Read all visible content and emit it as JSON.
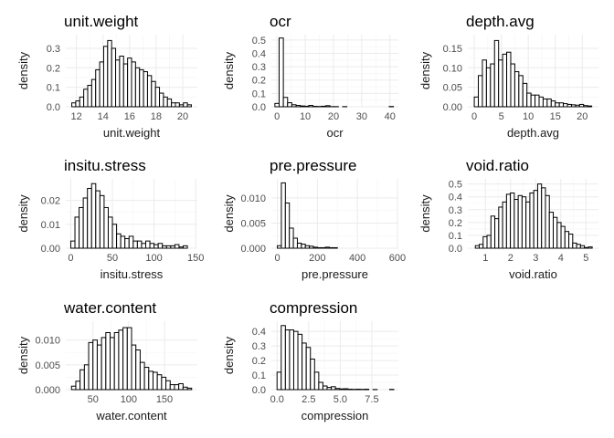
{
  "chart_data": [
    {
      "type": "bar",
      "title": "unit.weight",
      "xlabel": "unit.weight",
      "ylabel": "density",
      "xlim": [
        11.2,
        21.1
      ],
      "ylim": [
        0,
        0.37
      ],
      "xticks": [
        12,
        14,
        16,
        18,
        20
      ],
      "xtick_labels": [
        "12",
        "14",
        "16",
        "18",
        "20"
      ],
      "yticks": [
        0,
        0.1,
        0.2,
        0.3
      ],
      "ytick_labels": [
        "0.0",
        "0.1",
        "0.2",
        "0.3"
      ],
      "bin_start": 11.65,
      "bin_width": 0.3,
      "values": [
        0.02,
        0.03,
        0.05,
        0.09,
        0.11,
        0.14,
        0.19,
        0.23,
        0.31,
        0.34,
        0.3,
        0.24,
        0.26,
        0.22,
        0.25,
        0.23,
        0.2,
        0.19,
        0.18,
        0.16,
        0.13,
        0.1,
        0.07,
        0.05,
        0.04,
        0.02,
        0.02,
        0.01,
        0.02,
        0.01
      ]
    },
    {
      "type": "bar",
      "title": "ocr",
      "xlabel": "ocr",
      "ylabel": "density",
      "xlim": [
        -2,
        43
      ],
      "ylim": [
        0,
        0.54
      ],
      "xticks": [
        0,
        10,
        20,
        30,
        40
      ],
      "xtick_labels": [
        "0",
        "10",
        "20",
        "30",
        "40"
      ],
      "yticks": [
        0,
        0.1,
        0.2,
        0.3,
        0.4,
        0.5
      ],
      "ytick_labels": [
        "0.0",
        "0.1",
        "0.2",
        "0.3",
        "0.4",
        "0.5"
      ],
      "bin_start": -0.75,
      "bin_width": 1.5,
      "values": [
        0.025,
        0.515,
        0.07,
        0.03,
        0.015,
        0.01,
        0.006,
        0.004,
        0.01,
        0.003,
        0.002,
        0.004,
        0.008,
        0.001,
        0.001,
        0.0,
        0.001,
        0.0,
        0.0,
        0.0,
        0.0,
        0.0,
        0.0,
        0.0,
        0.0,
        0.0,
        0.0,
        0.002,
        0.0
      ]
    },
    {
      "type": "bar",
      "title": "depth.avg",
      "xlabel": "depth.avg",
      "ylabel": "density",
      "xlim": [
        -1.2,
        23
      ],
      "ylim": [
        0,
        0.185
      ],
      "xticks": [
        0,
        5,
        10,
        15,
        20
      ],
      "xtick_labels": [
        "0",
        "5",
        "10",
        "15",
        "20"
      ],
      "yticks": [
        0,
        0.05,
        0.1,
        0.15
      ],
      "ytick_labels": [
        "0.00",
        "0.05",
        "0.10",
        "0.15"
      ],
      "bin_start": 0,
      "bin_width": 0.75,
      "values": [
        0.025,
        0.08,
        0.12,
        0.1,
        0.11,
        0.17,
        0.12,
        0.135,
        0.14,
        0.11,
        0.09,
        0.08,
        0.06,
        0.035,
        0.03,
        0.03,
        0.025,
        0.02,
        0.02,
        0.015,
        0.01,
        0.01,
        0.008,
        0.006,
        0.005,
        0.004,
        0.006,
        0.003,
        0.002
      ]
    },
    {
      "type": "bar",
      "title": "insitu.stress",
      "xlabel": "insitu.stress",
      "ylabel": "density",
      "xlim": [
        -6,
        152
      ],
      "ylim": [
        0,
        0.029
      ],
      "xticks": [
        0,
        50,
        100,
        150
      ],
      "xtick_labels": [
        "0",
        "50",
        "100",
        "150"
      ],
      "yticks": [
        0,
        0.01,
        0.02
      ],
      "ytick_labels": [
        "0.00",
        "0.01",
        "0.02"
      ],
      "bin_start": 0,
      "bin_width": 5,
      "values": [
        0.003,
        0.013,
        0.017,
        0.021,
        0.025,
        0.027,
        0.024,
        0.022,
        0.017,
        0.013,
        0.01,
        0.006,
        0.005,
        0.004,
        0.005,
        0.003,
        0.003,
        0.002,
        0.003,
        0.002,
        0.0015,
        0.002,
        0.001,
        0.001,
        0.001,
        0.0015,
        0.0005,
        0.001
      ]
    },
    {
      "type": "bar",
      "title": "pre.pressure",
      "xlabel": "pre.pressure",
      "ylabel": "density",
      "xlim": [
        -30,
        605
      ],
      "ylim": [
        0,
        0.0138
      ],
      "xticks": [
        0,
        200,
        400,
        600
      ],
      "xtick_labels": [
        "0",
        "200",
        "400",
        "600"
      ],
      "yticks": [
        0,
        0.005,
        0.01
      ],
      "ytick_labels": [
        "0.000",
        "0.005",
        "0.010"
      ],
      "bin_start": 0,
      "bin_width": 20,
      "values": [
        0.0005,
        0.013,
        0.009,
        0.004,
        0.002,
        0.001,
        0.0008,
        0.0005,
        0.0004,
        0.0002,
        0.0001,
        0.0001,
        0.0002,
        0.0001,
        0.0001,
        0.0,
        0.0,
        0.0,
        0.0,
        0.0,
        0.0,
        0.0,
        0.0,
        0.0,
        0.0,
        0.0,
        0.0,
        0.0,
        0.0,
        0.0
      ]
    },
    {
      "type": "bar",
      "title": "void.ratio",
      "xlabel": "void.ratio",
      "ylabel": "density",
      "xlim": [
        0.3,
        5.5
      ],
      "ylim": [
        0,
        0.54
      ],
      "xticks": [
        1,
        2,
        3,
        4,
        5
      ],
      "xtick_labels": [
        "1",
        "2",
        "3",
        "4",
        "5"
      ],
      "yticks": [
        0,
        0.1,
        0.2,
        0.3,
        0.4,
        0.5
      ],
      "ytick_labels": [
        "0.0",
        "0.1",
        "0.2",
        "0.3",
        "0.4",
        "0.5"
      ],
      "bin_start": 0.6,
      "bin_width": 0.155,
      "values": [
        0.02,
        0.03,
        0.09,
        0.1,
        0.25,
        0.23,
        0.32,
        0.36,
        0.42,
        0.43,
        0.38,
        0.41,
        0.4,
        0.36,
        0.43,
        0.45,
        0.5,
        0.47,
        0.41,
        0.28,
        0.24,
        0.2,
        0.17,
        0.13,
        0.11,
        0.04,
        0.03,
        0.02,
        0.005,
        0.01
      ]
    },
    {
      "type": "bar",
      "title": "water.content",
      "xlabel": "water.content",
      "ylabel": "density",
      "xlim": [
        12,
        196
      ],
      "ylim": [
        0,
        0.0138
      ],
      "xticks": [
        50,
        100,
        150
      ],
      "xtick_labels": [
        "50",
        "100",
        "150"
      ],
      "yticks": [
        0,
        0.005,
        0.01
      ],
      "ytick_labels": [
        "0.000",
        "0.005",
        "0.010"
      ],
      "bin_start": 20,
      "bin_width": 6,
      "values": [
        0.0007,
        0.0017,
        0.004,
        0.005,
        0.0095,
        0.01,
        0.009,
        0.0105,
        0.0115,
        0.0105,
        0.0115,
        0.012,
        0.0125,
        0.0125,
        0.009,
        0.008,
        0.0055,
        0.0045,
        0.0037,
        0.0035,
        0.003,
        0.0025,
        0.0018,
        0.001,
        0.001,
        0.0012,
        0.0005,
        0.0003
      ]
    },
    {
      "type": "bar",
      "title": "compression",
      "xlabel": "compression",
      "ylabel": "density",
      "xlim": [
        -0.45,
        9.6
      ],
      "ylim": [
        0,
        0.47
      ],
      "xticks": [
        0,
        2.5,
        5,
        7.5
      ],
      "xtick_labels": [
        "0.0",
        "2.5",
        "5.0",
        "7.5"
      ],
      "yticks": [
        0,
        0.1,
        0.2,
        0.3,
        0.4
      ],
      "ytick_labels": [
        "0.0",
        "0.1",
        "0.2",
        "0.3",
        "0.4"
      ],
      "bin_start": 0,
      "bin_width": 0.33,
      "values": [
        0.12,
        0.44,
        0.41,
        0.41,
        0.4,
        0.38,
        0.32,
        0.29,
        0.21,
        0.12,
        0.05,
        0.025,
        0.015,
        0.02,
        0.008,
        0.005,
        0.006,
        0.003,
        0.002,
        0.003,
        0.002,
        0.003,
        0.0,
        0.001,
        0.0,
        0.0,
        0.0,
        0.002,
        0.0
      ]
    }
  ]
}
